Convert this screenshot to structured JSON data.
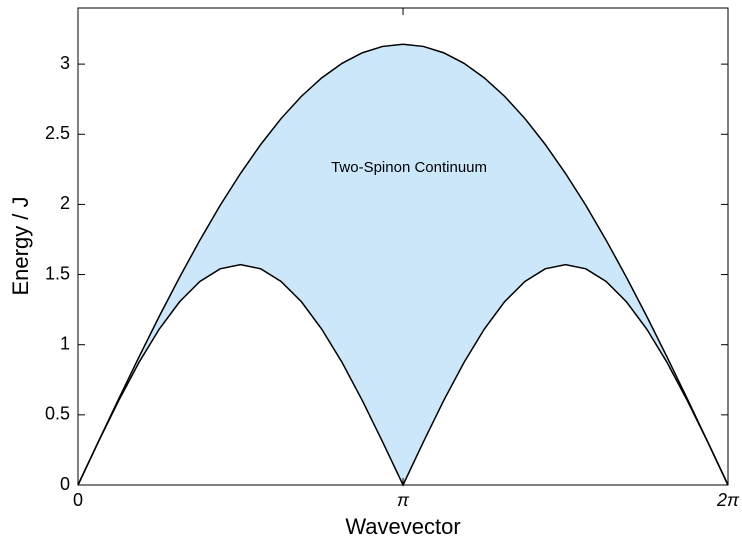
{
  "chart_data": {
    "type": "area",
    "xlabel": "Wavevector",
    "ylabel": "Energy / J",
    "annotations": [
      {
        "text": "Two-Spinon Continuum",
        "x": 3.2,
        "y": 2.26
      }
    ],
    "x": [
      0,
      0.196,
      0.393,
      0.589,
      0.785,
      0.982,
      1.178,
      1.374,
      1.571,
      1.767,
      1.963,
      2.16,
      2.356,
      2.553,
      2.749,
      2.945,
      3.142,
      3.338,
      3.534,
      3.731,
      3.927,
      4.123,
      4.32,
      4.516,
      4.712,
      4.909,
      5.105,
      5.301,
      5.498,
      5.694,
      5.89,
      6.087,
      6.283
    ],
    "series": [
      {
        "color": "#000000",
        "fill": "#ffffff",
        "values": [
          0,
          0.306,
          0.601,
          0.873,
          1.111,
          1.306,
          1.451,
          1.541,
          1.571,
          1.541,
          1.451,
          1.306,
          1.111,
          0.873,
          0.601,
          0.306,
          0,
          0.306,
          0.601,
          0.873,
          1.111,
          1.306,
          1.451,
          1.541,
          1.571,
          1.541,
          1.451,
          1.306,
          1.111,
          0.873,
          0.601,
          0.306,
          0
        ]
      },
      {
        "color": "#000000",
        "fill": "#cce7fa",
        "values": [
          0,
          0.308,
          0.613,
          0.912,
          1.202,
          1.481,
          1.745,
          1.993,
          2.221,
          2.428,
          2.612,
          2.771,
          2.902,
          3.006,
          3.081,
          3.126,
          3.142,
          3.126,
          3.081,
          3.006,
          2.902,
          2.771,
          2.612,
          2.428,
          2.221,
          1.993,
          1.745,
          1.481,
          1.202,
          0.912,
          0.613,
          0.308,
          0
        ]
      }
    ],
    "xlim": [
      0,
      6.283
    ],
    "xticks": [
      0,
      {
        "value": 3.142,
        "label": "π"
      },
      {
        "value": 6.283,
        "label": "2π"
      }
    ],
    "ylim": [
      0,
      3.4
    ],
    "yticks": [
      0,
      0.5,
      1,
      1.5,
      2,
      2.5,
      3
    ]
  }
}
